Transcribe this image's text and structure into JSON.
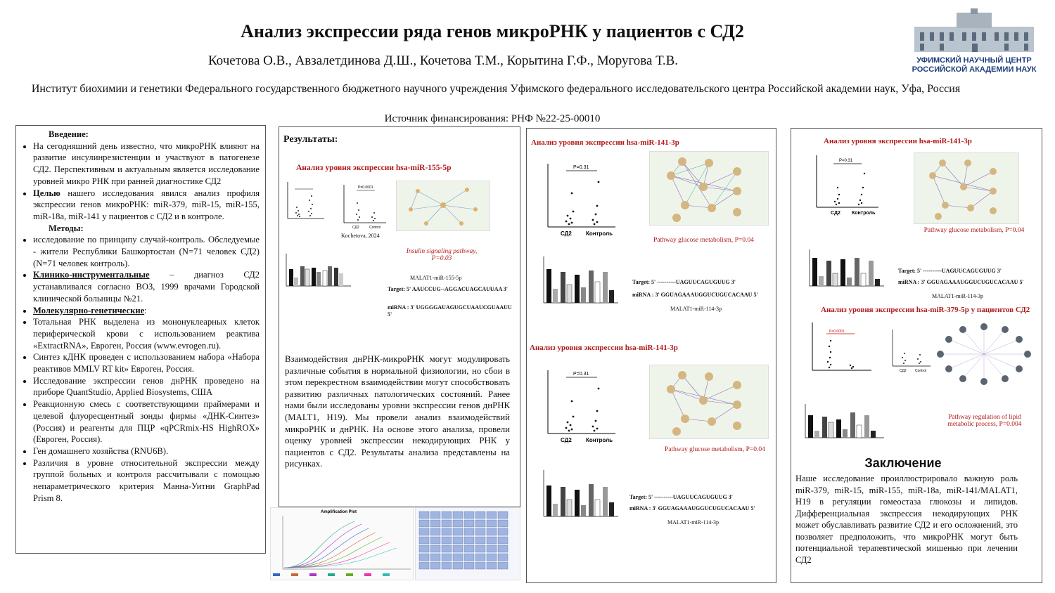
{
  "header": {
    "title": "Анализ экспрессии ряда генов микроРНК  у пациентов с СД2",
    "authors": "Кочетова О.В., Авзалетдинова Д.Ш., Кочетова Т.М., Корытина Г.Ф., Моругова Т.В.",
    "institute": "Институт биохимии и генетики Федерального государственного бюджетного научного учреждения Уфимского федерального исследовательского центра Российской академии наук, Уфа, Россия",
    "funding": "Источник финансирования:  РНФ №22-25-00010",
    "logo_line1": "УФИМСКИЙ НАУЧНЫЙ ЦЕНТР",
    "logo_line2": "РОССИЙСКОЙ АКАДЕМИИ НАУК"
  },
  "intro": {
    "h_intro": "Введение:",
    "p1": "На сегодняшний день известно, что микроРНК влияют на развитие инсулинрезистенции и участвуют в патогенезе СД2. Перспективным и актуальным является исследование уровней микро РНК при ранней диагностике СД2",
    "aim_label": "Целью",
    "aim_text": " нашего исследования явился анализ профиля экспрессии генов микроРНК: miR-379, miR-15, miR-155, miR-18a, miR-141 у пациентов с СД2 и в контроле.",
    "h_methods": "Методы:",
    "m1": " исследование по принципу случай-контроль. Обследуемые - жители Республики Башкортостан (N=71 человек СД2) (N=71 человек контроль).",
    "m2_label": "Клинико-инструментальные",
    "m2_text": " – диагноз СД2 устанавливался согласно ВОЗ, 1999 врачами Городской клинической больницы №21.",
    "m3_label": "Молекулярно-генетические",
    "m3_text": ":",
    "m4": " Тотальная РНК выделена из мононуклеарных клеток периферической крови с использованием реактива «ExtractRNA», Евроген, Россия (www.evrogen.ru).",
    "m5": "Синтез кДНК проведен с использованием набора «Набора реактивов MMLV RT kit» Евроген, Россия.",
    "m6": "Исследование экспрессии генов днРНК проведено на приборе QuantStudio, Applied Biosystems, США",
    "m7": " Реакционную смесь с соответствующими праймерами и целевой флуоресцентный зонды фирмы «ДНК-Синтез» (Россия) и реагенты для ПЦР «qPCRmix-HS HighROX» (Евроген, Россия).",
    "m8": "Ген домашнего хозяйства (RNU6B).",
    "m9": "Различия в уровне относительной экспрессии между группой больных и контроля рассчитывали с помощью непараметрического критерия Манна-Уитни GraphPad Prism 8."
  },
  "results": {
    "heading": "Результаты:",
    "subheading": "Анализ уровня экспрессии  hsa-miR-155-5p",
    "kochetova": "Kochetova, 2024",
    "pathway": "Insulin signaling pathway, P=0.03",
    "pair": "MALAT1-miR-155-5p",
    "target": "Target: 5' AAUCCUG--AGGACUAGCAUUAA 3'",
    "mirna": "miRNA : 3' UGGGGAUAGUGCUAAUCGUAAUU 5'",
    "text": "Взаимодействия днРНК-микроРНК могут модулировать различные события в нормальной физиологии, но сбои в этом перекрестном взаимодействии могут способствовать развитию различных патологических состояний. Ранее нами были исследованы уровни экспрессии генов днРНК (MALT1, H19). Мы провели анализ взаимодействий микроРНК и днРНК. На основе этого анализа, провели оценку уровней экспрессии некодирующих РНК у пациентов с СД2. Результаты анализа представлены на рисунках.",
    "amp_title": "Amplification Plot",
    "p_small": "P=0.0001",
    "yaxis_small": "Relative expression level of MALAT1",
    "grp_cd": "СД2",
    "grp_ctrl": "Control"
  },
  "col3": {
    "heading1": "Анализ уровня экспрессии  hsa-miR-141-3p",
    "heading2": "Анализ уровня экспрессии  hsa-miR-141-3p",
    "pvalue": "P=0.31",
    "yaxis": "Относительный уровень экспрессии miRNA-141",
    "group1": "СД2",
    "group2": "Контроль",
    "pathway": "Pathway glucose metabolism, P=0.04",
    "target": "Target: 5' ----------UAGUUCAGUGUUG  3'",
    "mirna": "miRNA : 3' GGUAGAAAUGGUCUGUCACAAU 5'",
    "pair": "MALAT1-miR-114-3p",
    "nodes": [
      "GPI",
      "NUP160",
      "POM121C",
      "ADPOK",
      "NUP155",
      "PGK1",
      "RAE1",
      "NUP54",
      "PFKL",
      "NUP133"
    ]
  },
  "col4": {
    "heading1": "Анализ уровня экспрессии  hsa-miR-141-3p",
    "pvalue": "P=0.31",
    "group1": "СД2",
    "group2": "Контроль",
    "pathway": "Pathway glucose metabolism, P=0.04",
    "target": "Target: 5' ----------UAGUUCAGUGUUG  3'",
    "mirna": "miRNA : 3' GGUAGAAAUGGUCUGUCACAAU 5'",
    "pair": "MALAT1-miR-114-3p",
    "heading2": "Анализ уровня экспрессии  hsa-miR-379-5p у пациентов СД2",
    "p379": "P<0.0001",
    "pathway2": "Pathway  regulation of lipid metabolic process, P=0.004",
    "concl_title": "Заключение",
    "concl_text": "Наше исследование проиллюстрировало важную роль miR-379, miR-15, miR-155, miR-18a, miR-141/MALAT1, H19 в регуляции гомеостаза глюкозы и липидов. Дифференциальная экспрессия некодирующих РНК может обуславливать развитие СД2 и его осложнений, это позволяет предположить, что микроРНК могут быть потенциальной терапевтической мишенью при лечении СД2"
  }
}
